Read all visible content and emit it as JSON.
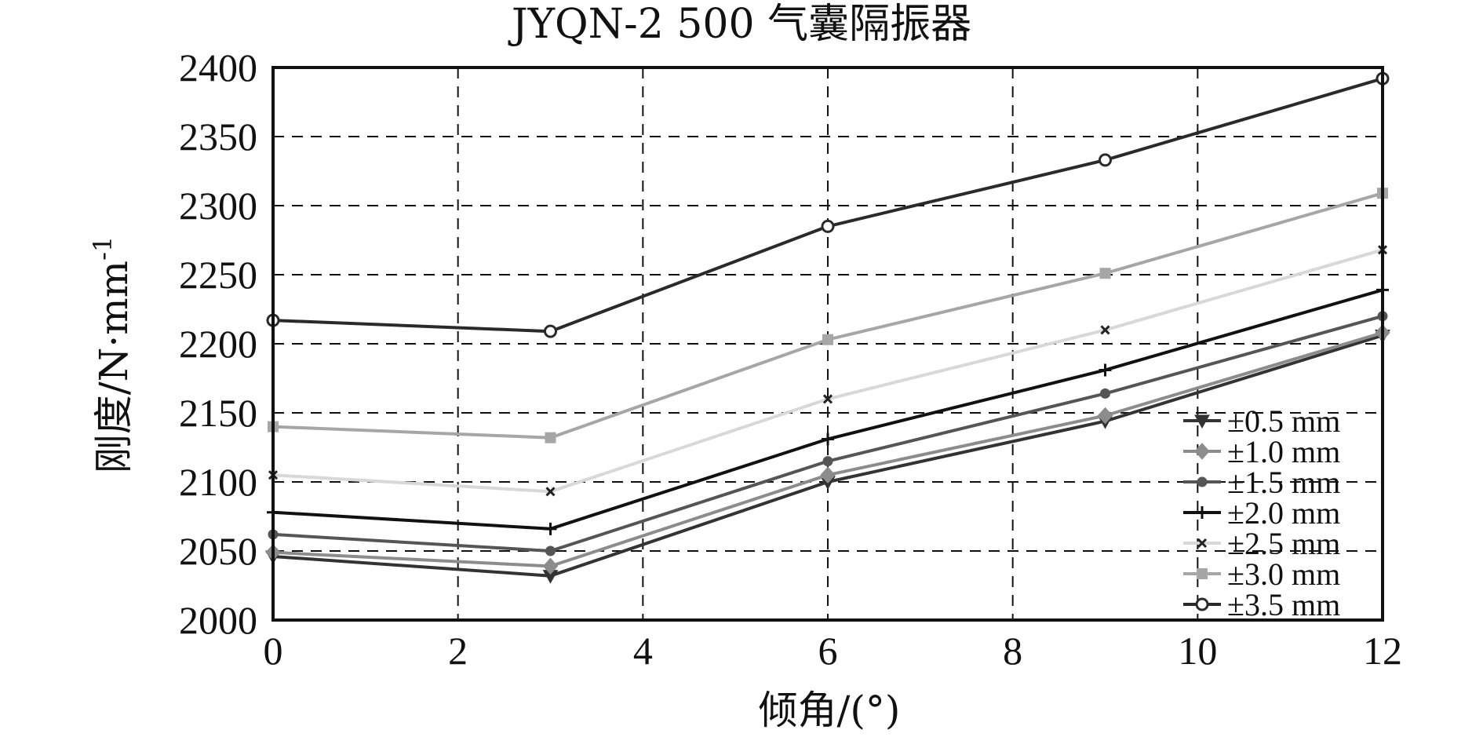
{
  "chart_data": {
    "type": "line",
    "title": "JYQN-2 500 气囊隔振器",
    "xlabel": "倾角/(°)",
    "ylabel": "刚度/N·mm",
    "ylabel_sup": "-1",
    "xlim": [
      0,
      12
    ],
    "ylim": [
      2000,
      2400
    ],
    "xticks": [
      0,
      2,
      4,
      6,
      8,
      10,
      12
    ],
    "yticks": [
      2000,
      2050,
      2100,
      2150,
      2200,
      2250,
      2300,
      2350,
      2400
    ],
    "grid": true,
    "legend_position": "bottom-right",
    "x": [
      0,
      3,
      6,
      9,
      12
    ],
    "series": [
      {
        "name": "±0.5 mm",
        "values": [
          2046,
          2032,
          2100,
          2144,
          2206
        ],
        "color": "#333333",
        "marker": "triangle-down"
      },
      {
        "name": "±1.0 mm",
        "values": [
          2049,
          2039,
          2105,
          2148,
          2208
        ],
        "color": "#8c8c8c",
        "marker": "diamond"
      },
      {
        "name": "±1.5 mm",
        "values": [
          2062,
          2050,
          2115,
          2164,
          2220
        ],
        "color": "#555555",
        "marker": "circle-filled"
      },
      {
        "name": "±2.0 mm",
        "values": [
          2078,
          2066,
          2131,
          2181,
          2239
        ],
        "color": "#111111",
        "marker": "plus"
      },
      {
        "name": "±2.5 mm",
        "values": [
          2105,
          2093,
          2160,
          2210,
          2268
        ],
        "color": "#d8d8d8",
        "marker": "x"
      },
      {
        "name": "±3.0 mm",
        "values": [
          2140,
          2132,
          2203,
          2251,
          2309
        ],
        "color": "#a6a6a6",
        "marker": "square"
      },
      {
        "name": "±3.5 mm",
        "values": [
          2217,
          2209,
          2285,
          2333,
          2392
        ],
        "color": "#2a2a2a",
        "marker": "circle-open"
      }
    ]
  }
}
